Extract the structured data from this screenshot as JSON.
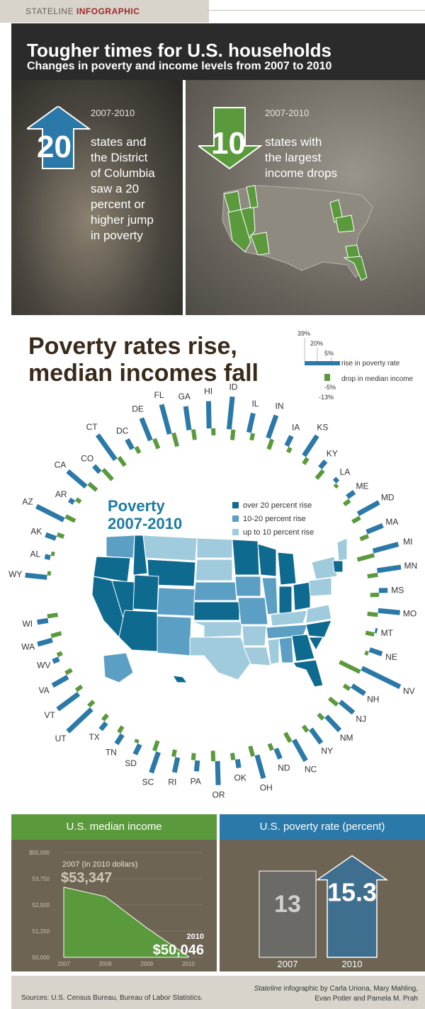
{
  "header": {
    "brand": "STATELINE",
    "tag": "INFOGRAPHIC"
  },
  "title": {
    "main": "Tougher times for U.S. households",
    "sub": "Changes in poverty and income levels from 2007 to 2010"
  },
  "panel_left": {
    "year": "2007-2010",
    "number": "20",
    "text_lines": [
      "states and",
      "the District",
      "of Columbia",
      "saw a 20",
      "percent or",
      "higher jump",
      "in poverty"
    ],
    "arrow_color": "#2a79a8"
  },
  "panel_right": {
    "year": "2007-2010",
    "number": "10",
    "text_lines": [
      "states with",
      "the largest",
      "income drops"
    ],
    "arrow_color": "#5a9a3c"
  },
  "section2": {
    "title_line1": "Poverty rates rise,",
    "title_line2": "median incomes fall"
  },
  "radial_legend": {
    "ticks_up": [
      "39%",
      "20%",
      "5%"
    ],
    "ticks_down": [
      "-5%",
      "-13%"
    ],
    "rise_label": "rise in poverty rate",
    "drop_label": "drop in median income",
    "rise_color": "#2a79a8",
    "drop_color": "#5a9a3c"
  },
  "poverty_map": {
    "title_line1": "Poverty",
    "title_line2": "2007-2010",
    "legend": [
      {
        "label": "over 20 percent rise",
        "color": "#0f6a8f"
      },
      {
        "label": "10-20 percent rise",
        "color": "#5b9fc4"
      },
      {
        "label": "up to 10 percent rise",
        "color": "#9fcbdc"
      }
    ]
  },
  "chart_data": [
    {
      "type": "bar",
      "title": "",
      "categories": [
        "WY",
        "AL",
        "AK",
        "AZ",
        "AR",
        "CA",
        "CO",
        "CT",
        "DC",
        "DE",
        "FL",
        "GA",
        "HI",
        "ID",
        "IL",
        "IN",
        "IA",
        "KS",
        "KY",
        "LA",
        "ME",
        "MD",
        "MA",
        "MI",
        "MN",
        "MS",
        "MO",
        "MT",
        "NE",
        "NV",
        "NH",
        "NJ",
        "NM",
        "NY",
        "NC",
        "ND",
        "OH",
        "OK",
        "OR",
        "PA",
        "RI",
        "SC",
        "SD",
        "TN",
        "TX",
        "UT",
        "VT",
        "VA",
        "WV",
        "WA",
        "WI"
      ],
      "series": [
        {
          "name": "rise in poverty rate",
          "values": [
            20,
            5,
            10,
            28,
            5,
            22,
            8,
            28,
            10,
            22,
            28,
            22,
            25,
            30,
            18,
            22,
            10,
            22,
            8,
            4,
            8,
            22,
            16,
            24,
            22,
            8,
            20,
            2,
            12,
            39,
            14,
            16,
            18,
            16,
            22,
            10,
            22,
            8,
            22,
            10,
            14,
            20,
            10,
            10,
            8,
            30,
            24,
            16,
            6,
            14,
            10
          ]
        },
        {
          "name": "drop in median income",
          "values": [
            -2,
            -2,
            -4,
            -6,
            -3,
            -6,
            -8,
            -6,
            -4,
            -6,
            -8,
            -6,
            -4,
            -6,
            -4,
            -6,
            -3,
            -4,
            -6,
            -2,
            -4,
            -5,
            -5,
            -10,
            -6,
            -5,
            -6,
            -5,
            -2,
            -13,
            -4,
            -6,
            -4,
            -4,
            -6,
            -4,
            -6,
            -4,
            -6,
            -4,
            -4,
            -6,
            -2,
            -4,
            -4,
            -4,
            -4,
            -4,
            -3,
            -6,
            -6
          ]
        }
      ],
      "ylim": [
        -13,
        39
      ]
    },
    {
      "type": "area",
      "title": "U.S. median income",
      "x": [
        "2007",
        "2008",
        "2009",
        "2010"
      ],
      "values": [
        53347,
        52900,
        51400,
        50046
      ],
      "ylim": [
        50000,
        55000
      ],
      "yticks": [
        "$55,000",
        "53,750",
        "52,500",
        "51,250",
        "50,000"
      ],
      "annotation_start_label": "2007 (in 2010 dollars)",
      "annotation_start_value": "$53,347",
      "annotation_end_label": "2010",
      "annotation_end_value": "$50,046",
      "color": "#5a9a3c"
    },
    {
      "type": "bar",
      "title": "U.S. poverty rate (percent)",
      "categories": [
        "2007",
        "2010"
      ],
      "values": [
        13,
        15.3
      ],
      "value_labels": [
        "13",
        "15.3"
      ],
      "colors": [
        "#6b6a66",
        "#3f6f8e"
      ]
    }
  ],
  "footer": {
    "sources": "Sources:  U.S. Census Bureau, Bureau of Labor Statistics.",
    "credit_italic": "Stateline",
    "credit_line1": " infographic by Carla Uriona, Mary Mahling,",
    "credit_line2": "Evan Potler and Pamela M. Prah"
  }
}
